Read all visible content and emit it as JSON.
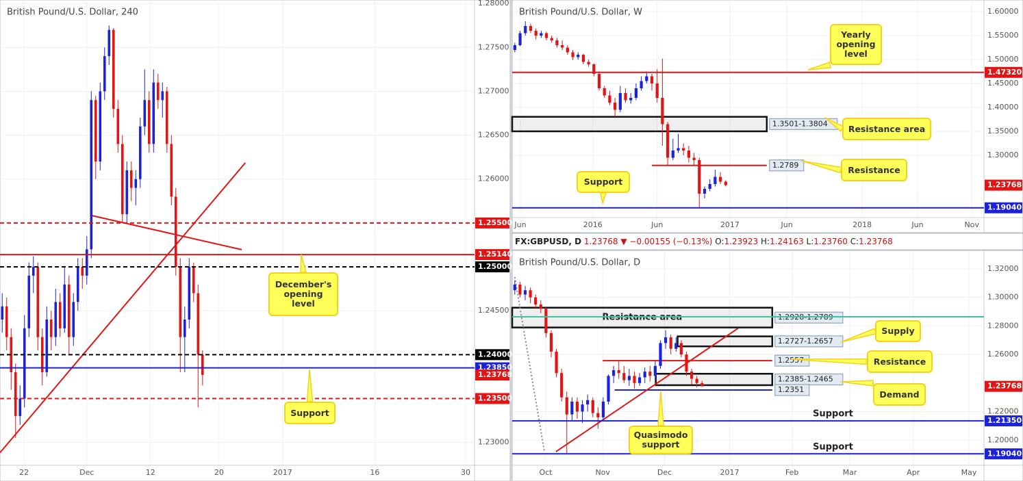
{
  "header": {
    "symbol": "FX:GBPUSD, D",
    "last": "1.23768",
    "change": "▼ −0.00155 (−0.13%)",
    "ohlc": [
      {
        "label": "O:",
        "value": "1.23923"
      },
      {
        "label": "H:",
        "value": "1.24163"
      },
      {
        "label": "L:",
        "value": "1.23760"
      },
      {
        "label": "C:",
        "value": "1.23768"
      }
    ]
  },
  "chart_data": [
    {
      "type": "candlestick",
      "title": "British Pound/U.S. Dollar, 240",
      "up_color": "#1c22d8",
      "down_color": "#e31414",
      "grid": true,
      "xlim": [
        0,
        106.6
      ],
      "xticks": [
        {
          "value": 5.4,
          "label": "22"
        },
        {
          "value": 19.5,
          "label": "Dec"
        },
        {
          "value": 33.8,
          "label": "12"
        },
        {
          "value": 49.2,
          "label": "20"
        },
        {
          "value": 63.5,
          "label": "2017"
        },
        {
          "value": 84.2,
          "label": "16"
        },
        {
          "value": 104.6,
          "label": "30"
        }
      ],
      "ylim": [
        1.2274,
        1.2804
      ],
      "yticks": [
        {
          "value": 1.28,
          "label": "1.28000"
        },
        {
          "value": 1.275,
          "label": "1.27500"
        },
        {
          "value": 1.27,
          "label": "1.27000"
        },
        {
          "value": 1.265,
          "label": "1.26500"
        },
        {
          "value": 1.26,
          "label": "1.26000"
        },
        {
          "value": 1.245,
          "label": "1.24500"
        },
        {
          "value": 1.23,
          "label": "1.23000"
        }
      ],
      "levels": [
        {
          "value": 1.255,
          "label": "1.25500",
          "color": "#e31414",
          "style": "dashed"
        },
        {
          "value": 1.2514,
          "label": "1.25140",
          "color": "#e31414",
          "style": "solid"
        },
        {
          "value": 1.25,
          "label": "1.25000",
          "color": "#000000",
          "style": "dashed"
        },
        {
          "value": 1.24,
          "label": "1.24000",
          "color": "#000000",
          "style": "dashed"
        },
        {
          "value": 1.2385,
          "label": "1.23850",
          "color": "#1c22d8",
          "style": "solid"
        },
        {
          "value": 1.23768,
          "label": "1.23768",
          "color": "#e31414",
          "style": "none"
        },
        {
          "value": 1.235,
          "label": "1.23500",
          "color": "#e31414",
          "style": "dashed"
        }
      ],
      "trendlines": [
        {
          "x": [
            0,
            55.1
          ],
          "y": [
            1.22883,
            1.26185
          ],
          "color": "#e31414",
          "style": "solid"
        },
        {
          "x": [
            20.5,
            54.3
          ],
          "y": [
            1.25586,
            1.25196
          ],
          "color": "#e31414",
          "style": "solid"
        }
      ],
      "annotations": [
        "December's opening level",
        "Support"
      ],
      "ohlc": [
        [
          1.244,
          1.247,
          1.2425,
          1.2455
        ],
        [
          1.2455,
          1.2465,
          1.2405,
          1.242
        ],
        [
          1.242,
          1.243,
          1.236,
          1.238
        ],
        [
          1.238,
          1.239,
          1.2305,
          1.233
        ],
        [
          1.233,
          1.2365,
          1.232,
          1.235
        ],
        [
          1.235,
          1.2445,
          1.234,
          1.243
        ],
        [
          1.243,
          1.2505,
          1.242,
          1.249
        ],
        [
          1.249,
          1.2512,
          1.247,
          1.25
        ],
        [
          1.25,
          1.2505,
          1.2405,
          1.242
        ],
        [
          1.242,
          1.243,
          1.2365,
          1.238
        ],
        [
          1.238,
          1.2455,
          1.2375,
          1.244
        ],
        [
          1.244,
          1.245,
          1.2405,
          1.242
        ],
        [
          1.242,
          1.2475,
          1.241,
          1.246
        ],
        [
          1.246,
          1.247,
          1.242,
          1.243
        ],
        [
          1.243,
          1.25,
          1.2425,
          1.248
        ],
        [
          1.248,
          1.249,
          1.24,
          1.242
        ],
        [
          1.242,
          1.247,
          1.241,
          1.246
        ],
        [
          1.246,
          1.251,
          1.245,
          1.25
        ],
        [
          1.25,
          1.251,
          1.2475,
          1.249
        ],
        [
          1.249,
          1.2535,
          1.248,
          1.252
        ],
        [
          1.252,
          1.27,
          1.251,
          1.269
        ],
        [
          1.269,
          1.2695,
          1.26,
          1.262
        ],
        [
          1.262,
          1.271,
          1.261,
          1.27
        ],
        [
          1.27,
          1.275,
          1.269,
          1.274
        ],
        [
          1.274,
          1.2775,
          1.273,
          1.277
        ],
        [
          1.277,
          1.2772,
          1.267,
          1.268
        ],
        [
          1.268,
          1.269,
          1.263,
          1.264
        ],
        [
          1.264,
          1.265,
          1.255,
          1.256
        ],
        [
          1.256,
          1.262,
          1.255,
          1.261
        ],
        [
          1.261,
          1.262,
          1.2575,
          1.259
        ],
        [
          1.259,
          1.261,
          1.257,
          1.26
        ],
        [
          1.26,
          1.267,
          1.259,
          1.266
        ],
        [
          1.266,
          1.2725,
          1.265,
          1.269
        ],
        [
          1.269,
          1.27,
          1.263,
          1.264
        ],
        [
          1.264,
          1.2725,
          1.263,
          1.271
        ],
        [
          1.271,
          1.272,
          1.268,
          1.269
        ],
        [
          1.269,
          1.271,
          1.267,
          1.27
        ],
        [
          1.27,
          1.2705,
          1.263,
          1.264
        ],
        [
          1.264,
          1.265,
          1.257,
          1.258
        ],
        [
          1.258,
          1.259,
          1.249,
          1.25
        ],
        [
          1.25,
          1.251,
          1.238,
          1.242
        ],
        [
          1.242,
          1.2455,
          1.238,
          1.244
        ],
        [
          1.244,
          1.251,
          1.243,
          1.25
        ],
        [
          1.25,
          1.2505,
          1.246,
          1.247
        ],
        [
          1.247,
          1.248,
          1.234,
          1.24
        ],
        [
          1.24,
          1.2405,
          1.2365,
          1.2377
        ]
      ]
    },
    {
      "type": "candlestick",
      "title": "British Pound/U.S. Dollar, W",
      "up_color": "#1c22d8",
      "down_color": "#e31414",
      "grid": true,
      "xlim": [
        0,
        89.5
      ],
      "xticks": [
        {
          "value": 1.56,
          "label": "Jun"
        },
        {
          "value": 15.3,
          "label": "2016"
        },
        {
          "value": 27.5,
          "label": "Jun"
        },
        {
          "value": 41.3,
          "label": "2017"
        },
        {
          "value": 52.1,
          "label": "Jun"
        },
        {
          "value": 66.4,
          "label": "2018"
        },
        {
          "value": 76.9,
          "label": "Jun"
        },
        {
          "value": 87.2,
          "label": "Nov"
        }
      ],
      "ylim": [
        1.17,
        1.6243
      ],
      "yticks": [
        {
          "value": 1.6,
          "label": "1.60000"
        },
        {
          "value": 1.55,
          "label": "1.55000"
        },
        {
          "value": 1.5,
          "label": "1.50000"
        },
        {
          "value": 1.45,
          "label": "1.45000"
        },
        {
          "value": 1.4,
          "label": "1.40000"
        },
        {
          "value": 1.35,
          "label": "1.35000"
        },
        {
          "value": 1.3,
          "label": "1.30000"
        }
      ],
      "levels": [
        {
          "value": 1.4732,
          "label": "1.47320",
          "color": "#e31414",
          "style": "solid"
        },
        {
          "value": 1.23768,
          "label": "1.23768",
          "color": "#e31414",
          "style": "none"
        },
        {
          "value": 1.1904,
          "label": "1.19040",
          "color": "#1c22d8",
          "style": "solid"
        }
      ],
      "zones": [
        {
          "values": [
            1.3501,
            1.3804
          ],
          "label": "1.3501-1.3804",
          "x": [
            0,
            48.3
          ]
        }
      ],
      "lines": [
        {
          "value": 1.2789,
          "color": "#e31414",
          "x": [
            26.5,
            48.3
          ]
        }
      ],
      "annotations": [
        "Yearly opening level",
        "Resistance area",
        "Resistance",
        "Support"
      ],
      "ohlc": [
        [
          1.52,
          1.535,
          1.515,
          1.53
        ],
        [
          1.53,
          1.56,
          1.528,
          1.555
        ],
        [
          1.555,
          1.58,
          1.55,
          1.57
        ],
        [
          1.57,
          1.575,
          1.555,
          1.56
        ],
        [
          1.56,
          1.565,
          1.542,
          1.55
        ],
        [
          1.55,
          1.56,
          1.545,
          1.555
        ],
        [
          1.555,
          1.558,
          1.54,
          1.545
        ],
        [
          1.545,
          1.55,
          1.535,
          1.54
        ],
        [
          1.54,
          1.545,
          1.525,
          1.53
        ],
        [
          1.53,
          1.54,
          1.52,
          1.525
        ],
        [
          1.525,
          1.53,
          1.51,
          1.515
        ],
        [
          1.515,
          1.52,
          1.499,
          1.505
        ],
        [
          1.505,
          1.515,
          1.5,
          1.51
        ],
        [
          1.51,
          1.512,
          1.49,
          1.495
        ],
        [
          1.495,
          1.5,
          1.485,
          1.49
        ],
        [
          1.49,
          1.492,
          1.465,
          1.47
        ],
        [
          1.47,
          1.475,
          1.435,
          1.44
        ],
        [
          1.44,
          1.445,
          1.42,
          1.425
        ],
        [
          1.425,
          1.435,
          1.405,
          1.41
        ],
        [
          1.41,
          1.42,
          1.38,
          1.395
        ],
        [
          1.395,
          1.445,
          1.39,
          1.43
        ],
        [
          1.43,
          1.44,
          1.41,
          1.415
        ],
        [
          1.415,
          1.43,
          1.408,
          1.42
        ],
        [
          1.42,
          1.45,
          1.415,
          1.44
        ],
        [
          1.44,
          1.465,
          1.435,
          1.455
        ],
        [
          1.455,
          1.475,
          1.45,
          1.465
        ],
        [
          1.465,
          1.47,
          1.435,
          1.45
        ],
        [
          1.45,
          1.48,
          1.41,
          1.42
        ],
        [
          1.42,
          1.502,
          1.32,
          1.365
        ],
        [
          1.365,
          1.37,
          1.28,
          1.295
        ],
        [
          1.295,
          1.335,
          1.29,
          1.31
        ],
        [
          1.31,
          1.345,
          1.305,
          1.315
        ],
        [
          1.315,
          1.325,
          1.3,
          1.31
        ],
        [
          1.31,
          1.32,
          1.285,
          1.295
        ],
        [
          1.295,
          1.305,
          1.28,
          1.29
        ],
        [
          1.29,
          1.295,
          1.1904,
          1.22
        ],
        [
          1.22,
          1.235,
          1.21,
          1.23
        ],
        [
          1.23,
          1.25,
          1.225,
          1.24
        ],
        [
          1.24,
          1.27,
          1.235,
          1.255
        ],
        [
          1.255,
          1.265,
          1.24,
          1.245
        ],
        [
          1.245,
          1.248,
          1.235,
          1.2377
        ]
      ]
    },
    {
      "type": "candlestick",
      "title": "British Pound/U.S. Dollar, D",
      "up_color": "#1c22d8",
      "down_color": "#e31414",
      "grid": true,
      "xlim": [
        0,
        90.7
      ],
      "xticks": [
        {
          "value": 6.45,
          "label": "Oct"
        },
        {
          "value": 17.4,
          "label": "Nov"
        },
        {
          "value": 29.3,
          "label": "Dec"
        },
        {
          "value": 41.8,
          "label": "2017"
        },
        {
          "value": 53.8,
          "label": "Feb"
        },
        {
          "value": 64.9,
          "label": "Mar"
        },
        {
          "value": 77.1,
          "label": "Apr"
        },
        {
          "value": 87.8,
          "label": "May"
        }
      ],
      "ylim": [
        1.1824,
        1.3329
      ],
      "yticks": [
        {
          "value": 1.32,
          "label": "1.32000"
        },
        {
          "value": 1.3,
          "label": "1.30000"
        },
        {
          "value": 1.28,
          "label": "1.28000"
        },
        {
          "value": 1.26,
          "label": "1.26000"
        },
        {
          "value": 1.22,
          "label": "1.22000"
        },
        {
          "value": 1.2,
          "label": "1.20000"
        }
      ],
      "levels": [
        {
          "value": 1.2864,
          "color": "#3ec1a0",
          "style": "solid"
        },
        {
          "value": 1.23768,
          "label": "1.23768",
          "color": "#e31414",
          "style": "none"
        },
        {
          "value": 1.2135,
          "label": "1.21350",
          "color": "#1c22d8",
          "style": "solid",
          "name": "Support"
        },
        {
          "value": 1.1904,
          "label": "1.19040",
          "color": "#1c22d8",
          "style": "solid",
          "name": "Support"
        }
      ],
      "zones": [
        {
          "values": [
            1.2928,
            1.2789
          ],
          "label": "1.2928-1.2789",
          "name": "Resistance area",
          "x": [
            0,
            50
          ]
        },
        {
          "values": [
            1.2727,
            1.2657
          ],
          "label": "1.2727-1.2657",
          "x": [
            31.8,
            50
          ]
        },
        {
          "values": [
            1.2385,
            1.2465
          ],
          "label": "1.2385-1.2465",
          "x": [
            27.6,
            50
          ]
        }
      ],
      "lines": [
        {
          "value": 1.2557,
          "color": "#e31414",
          "x": [
            17.4,
            50
          ]
        },
        {
          "value": 1.2351,
          "color": "#1c22d8",
          "x": [
            19.7,
            50
          ]
        }
      ],
      "trendlines": [
        {
          "x": [
            8.4,
            43.4
          ],
          "y": [
            1.1919,
            1.2783
          ],
          "color": "#e31414",
          "style": "solid"
        },
        {
          "x": [
            0.5,
            6.2
          ],
          "y": [
            1.3142,
            1.1919
          ],
          "color": "#888888",
          "style": "dotted"
        }
      ],
      "annotations": [
        "Supply",
        "Resistance",
        "Demand",
        "Quasimodo support"
      ],
      "ohlc": [
        [
          1.305,
          1.312,
          1.302,
          1.309
        ],
        [
          1.309,
          1.311,
          1.3,
          1.302
        ],
        [
          1.302,
          1.308,
          1.298,
          1.305
        ],
        [
          1.305,
          1.307,
          1.296,
          1.3
        ],
        [
          1.3,
          1.302,
          1.292,
          1.295
        ],
        [
          1.295,
          1.298,
          1.289,
          1.292
        ],
        [
          1.292,
          1.293,
          1.272,
          1.275
        ],
        [
          1.275,
          1.277,
          1.258,
          1.262
        ],
        [
          1.262,
          1.264,
          1.244,
          1.247
        ],
        [
          1.247,
          1.25,
          1.227,
          1.23
        ],
        [
          1.23,
          1.234,
          1.1904,
          1.218
        ],
        [
          1.218,
          1.23,
          1.214,
          1.227
        ],
        [
          1.227,
          1.23,
          1.215,
          1.22
        ],
        [
          1.22,
          1.228,
          1.212,
          1.225
        ],
        [
          1.225,
          1.232,
          1.22,
          1.228
        ],
        [
          1.228,
          1.23,
          1.216,
          1.219
        ],
        [
          1.219,
          1.223,
          1.208,
          1.216
        ],
        [
          1.216,
          1.23,
          1.214,
          1.227
        ],
        [
          1.227,
          1.246,
          1.225,
          1.245
        ],
        [
          1.245,
          1.252,
          1.24,
          1.249
        ],
        [
          1.249,
          1.256,
          1.243,
          1.247
        ],
        [
          1.247,
          1.252,
          1.24,
          1.242
        ],
        [
          1.242,
          1.25,
          1.238,
          1.245
        ],
        [
          1.245,
          1.248,
          1.236,
          1.24
        ],
        [
          1.24,
          1.247,
          1.238,
          1.244
        ],
        [
          1.244,
          1.251,
          1.24,
          1.248
        ],
        [
          1.248,
          1.252,
          1.241,
          1.245
        ],
        [
          1.245,
          1.256,
          1.243,
          1.252
        ],
        [
          1.252,
          1.27,
          1.25,
          1.268
        ],
        [
          1.268,
          1.277,
          1.264,
          1.272
        ],
        [
          1.272,
          1.274,
          1.26,
          1.264
        ],
        [
          1.264,
          1.272,
          1.262,
          1.268
        ],
        [
          1.268,
          1.27,
          1.258,
          1.26
        ],
        [
          1.26,
          1.262,
          1.245,
          1.248
        ],
        [
          1.248,
          1.25,
          1.239,
          1.243
        ],
        [
          1.243,
          1.245,
          1.237,
          1.24
        ],
        [
          1.24,
          1.2416,
          1.2376,
          1.2377
        ]
      ]
    }
  ]
}
